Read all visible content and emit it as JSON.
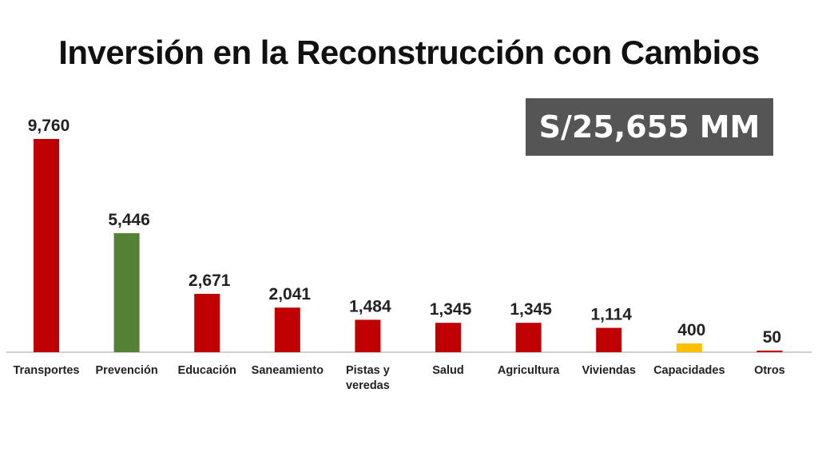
{
  "title": "Inversión en la Reconstrucción con Cambios",
  "total_badge": "S/25,655 MM",
  "colors": {
    "red": "#c00000",
    "green": "#548235",
    "yellow": "#ffc000",
    "badge_bg": "#555555"
  },
  "chart_data": {
    "type": "bar",
    "title": "Inversión en la Reconstrucción con Cambios",
    "xlabel": "",
    "ylabel": "",
    "ylim": [
      0,
      9760
    ],
    "grid": false,
    "legend": "none",
    "categories": [
      [
        "Transportes"
      ],
      [
        "Prevención"
      ],
      [
        "Educación"
      ],
      [
        "Saneamiento"
      ],
      [
        "Pistas y",
        "veredas"
      ],
      [
        "Salud"
      ],
      [
        "Agricultura"
      ],
      [
        "Viviendas"
      ],
      [
        "Capacidades"
      ],
      [
        "Otros"
      ]
    ],
    "values": [
      9760,
      5446,
      2671,
      2041,
      1484,
      1345,
      1345,
      1114,
      400,
      50
    ],
    "value_labels": [
      "9,760",
      "5,446",
      "2,671",
      "2,041",
      "1,484",
      "1,345",
      "1,345",
      "1,114",
      "400",
      "50"
    ],
    "bar_colors": [
      "#c00000",
      "#548235",
      "#c00000",
      "#c00000",
      "#c00000",
      "#c00000",
      "#c00000",
      "#c00000",
      "#ffc000",
      "#c00000"
    ]
  }
}
